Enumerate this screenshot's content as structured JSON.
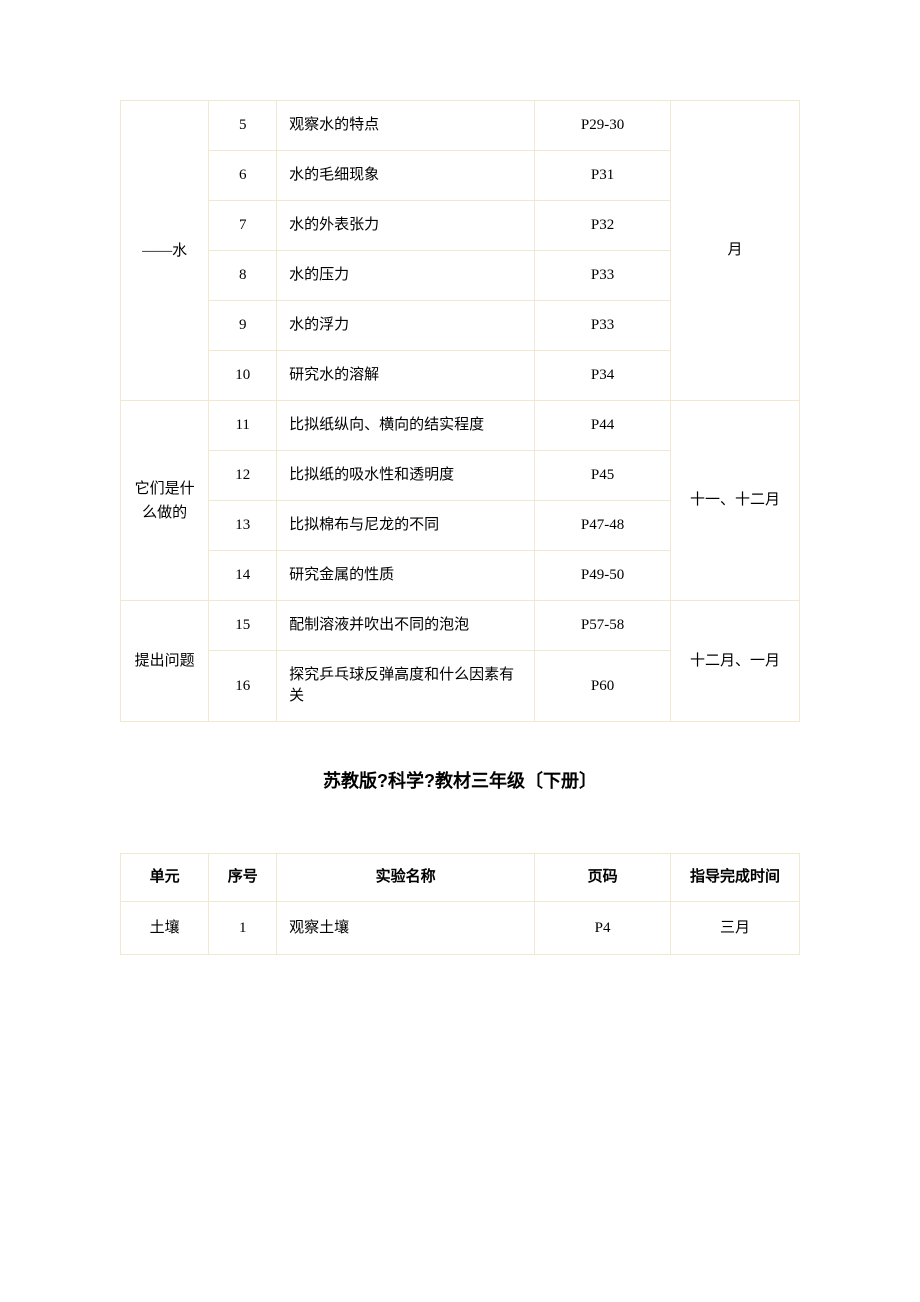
{
  "table1": {
    "rows": [
      {
        "unit": "——水",
        "unit_rowspan": 6,
        "seq": "5",
        "name": "观察水的特点",
        "page": "P29-30",
        "time": "月",
        "time_rowspan": 6
      },
      {
        "seq": "6",
        "name": "水的毛细现象",
        "page": "P31"
      },
      {
        "seq": "7",
        "name": "水的外表张力",
        "page": "P32"
      },
      {
        "seq": "8",
        "name": "水的压力",
        "page": "P33"
      },
      {
        "seq": "9",
        "name": "水的浮力",
        "page": "P33"
      },
      {
        "seq": "10",
        "name": "研究水的溶解",
        "page": "P34"
      },
      {
        "unit": "它们是什么做的",
        "unit_rowspan": 4,
        "seq": "11",
        "name": "比拟纸纵向、横向的结实程度",
        "page": "P44",
        "time": "十一、十二月",
        "time_rowspan": 4
      },
      {
        "seq": "12",
        "name": "比拟纸的吸水性和透明度",
        "page": "P45"
      },
      {
        "seq": "13",
        "name": "比拟棉布与尼龙的不同",
        "page": "P47-48"
      },
      {
        "seq": "14",
        "name": "研究金属的性质",
        "page": "P49-50"
      },
      {
        "unit": "提出问题",
        "unit_rowspan": 2,
        "seq": "15",
        "name": "配制溶液并吹出不同的泡泡",
        "page": "P57-58",
        "time": "十二月、一月",
        "time_rowspan": 2
      },
      {
        "seq": "16",
        "name": "探究乒乓球反弹高度和什么因素有关",
        "page": "P60"
      }
    ]
  },
  "section_title": "苏教版?科学?教材三年级〔下册〕",
  "table2": {
    "headers": {
      "unit": "单元",
      "seq": "序号",
      "name": "实验名称",
      "page": "页码",
      "time": "指导完成时间"
    },
    "rows": [
      {
        "unit": "土壤",
        "seq": "1",
        "name": "观察土壤",
        "page": "P4",
        "time": "三月"
      }
    ]
  },
  "colors": {
    "border": "#f0e8d0",
    "text": "#000000",
    "background": "#ffffff"
  }
}
